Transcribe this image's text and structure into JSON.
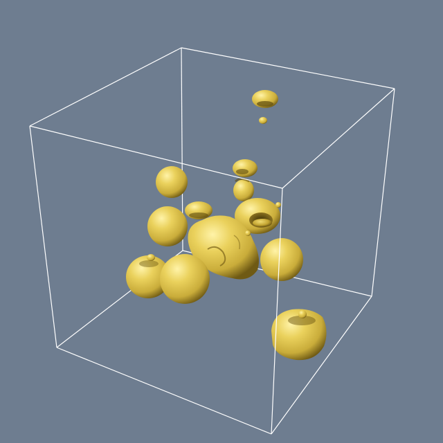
{
  "scene": {
    "background_color": "#6e7d90",
    "frame_color": "#ffffff",
    "surface_color": "#e3c955",
    "surface_highlight": "#fff1a6",
    "surface_shadow": "#7a6318",
    "objects": [
      "isosurface-blob-top-small",
      "isosurface-blob-top-tiny",
      "isosurface-blob-upper-left",
      "isosurface-blob-upper-hook",
      "isosurface-blob-ring",
      "isosurface-blob-left-middle",
      "isosurface-blob-central-large",
      "isosurface-blob-bottom-left-pair",
      "isosurface-blob-right-middle",
      "isosurface-blob-bottom-right"
    ]
  }
}
